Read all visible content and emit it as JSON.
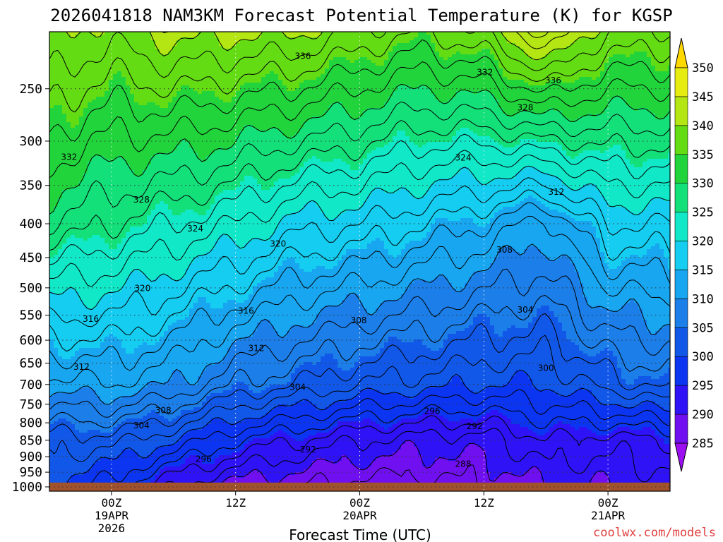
{
  "chart_data": {
    "type": "heatmap",
    "title": "2026041818 NAM3KM Forecast Potential Temperature (K) for KGSP",
    "xlabel": "Forecast Time (UTC)",
    "ylabel": "",
    "watermark": "coolwx.com/models",
    "x_ticks": [
      {
        "hour": 6,
        "lines": [
          "00Z",
          "19APR",
          "2026"
        ]
      },
      {
        "hour": 18,
        "lines": [
          "12Z"
        ]
      },
      {
        "hour": 30,
        "lines": [
          "00Z",
          "20APR"
        ]
      },
      {
        "hour": 42,
        "lines": [
          "12Z"
        ]
      },
      {
        "hour": 54,
        "lines": [
          "00Z",
          "21APR"
        ]
      }
    ],
    "x_range_hours": [
      0,
      60
    ],
    "y_pressure_levels_hPa": [
      250,
      300,
      350,
      400,
      450,
      500,
      550,
      600,
      650,
      700,
      750,
      800,
      850,
      900,
      950,
      1000
    ],
    "y_range_hPa": [
      205,
      1015
    ],
    "surface_pressure_hPa": 985,
    "colorbar": {
      "ticks": [
        285,
        290,
        295,
        300,
        305,
        310,
        315,
        320,
        325,
        330,
        335,
        340,
        345,
        350
      ],
      "colors": [
        "#9b0ff0",
        "#7010f0",
        "#2f12f5",
        "#0b35f0",
        "#1258e8",
        "#1c7ee8",
        "#18a6f0",
        "#14cdf0",
        "#11e8c8",
        "#14e07a",
        "#22d43c",
        "#64dc14",
        "#b4e614",
        "#e6eb10",
        "#ffd800"
      ]
    },
    "contour_interval_K": 2,
    "contour_labels": [
      {
        "value": 336,
        "hour": 24.5,
        "p": 223
      },
      {
        "value": 336,
        "hour": 48.7,
        "p": 243
      },
      {
        "value": 332,
        "hour": 42.1,
        "p": 236
      },
      {
        "value": 332,
        "hour": 1.9,
        "p": 317
      },
      {
        "value": 328,
        "hour": 46.0,
        "p": 267
      },
      {
        "value": 328,
        "hour": 8.9,
        "p": 368
      },
      {
        "value": 324,
        "hour": 40.0,
        "p": 318
      },
      {
        "value": 324,
        "hour": 14.1,
        "p": 407
      },
      {
        "value": 320,
        "hour": 22.1,
        "p": 429
      },
      {
        "value": 320,
        "hour": 9.0,
        "p": 501
      },
      {
        "value": 316,
        "hour": 19.0,
        "p": 542
      },
      {
        "value": 316,
        "hour": 4.0,
        "p": 557
      },
      {
        "value": 312,
        "hour": 49.0,
        "p": 358
      },
      {
        "value": 312,
        "hour": 20.0,
        "p": 617
      },
      {
        "value": 312,
        "hour": 3.1,
        "p": 659
      },
      {
        "value": 308,
        "hour": 44.0,
        "p": 438
      },
      {
        "value": 308,
        "hour": 29.9,
        "p": 560
      },
      {
        "value": 308,
        "hour": 11.0,
        "p": 766
      },
      {
        "value": 304,
        "hour": 46.0,
        "p": 540
      },
      {
        "value": 304,
        "hour": 24.0,
        "p": 706
      },
      {
        "value": 304,
        "hour": 8.9,
        "p": 808
      },
      {
        "value": 300,
        "hour": 48.0,
        "p": 661
      },
      {
        "value": 296,
        "hour": 37.0,
        "p": 768
      },
      {
        "value": 296,
        "hour": 14.9,
        "p": 908
      },
      {
        "value": 292,
        "hour": 41.1,
        "p": 810
      },
      {
        "value": 292,
        "hour": 25.0,
        "p": 878
      },
      {
        "value": 288,
        "hour": 40.0,
        "p": 923
      }
    ],
    "profiles": [
      {
        "hour": 0,
        "t250": 337,
        "t400": 328,
        "t700": 311,
        "t850": 303,
        "tsfc": 300
      },
      {
        "hour": 6,
        "t250": 335,
        "t400": 326,
        "t700": 312,
        "t850": 303,
        "tsfc": 297
      },
      {
        "hour": 12,
        "t250": 336,
        "t400": 324,
        "t700": 310,
        "t850": 300,
        "tsfc": 292
      },
      {
        "hour": 18,
        "t250": 335,
        "t400": 322,
        "t700": 306,
        "t850": 296,
        "tsfc": 289
      },
      {
        "hour": 24,
        "t250": 334,
        "t400": 319,
        "t700": 304,
        "t850": 294,
        "tsfc": 288
      },
      {
        "hour": 30,
        "t250": 332,
        "t400": 318,
        "t700": 302,
        "t850": 292,
        "tsfc": 287
      },
      {
        "hour": 36,
        "t250": 330,
        "t400": 316,
        "t700": 301,
        "t850": 291,
        "tsfc": 287
      },
      {
        "hour": 42,
        "t250": 331,
        "t400": 314,
        "t700": 300,
        "t850": 291,
        "tsfc": 288
      },
      {
        "hour": 48,
        "t250": 335,
        "t400": 311,
        "t700": 300,
        "t850": 294,
        "tsfc": 290
      },
      {
        "hour": 54,
        "t250": 332,
        "t400": 318,
        "t700": 303,
        "t850": 293,
        "tsfc": 290
      },
      {
        "hour": 60,
        "t250": 332,
        "t400": 318,
        "t700": 305,
        "t850": 294,
        "tsfc": 291
      }
    ],
    "grid": true,
    "legend_position": "right"
  }
}
